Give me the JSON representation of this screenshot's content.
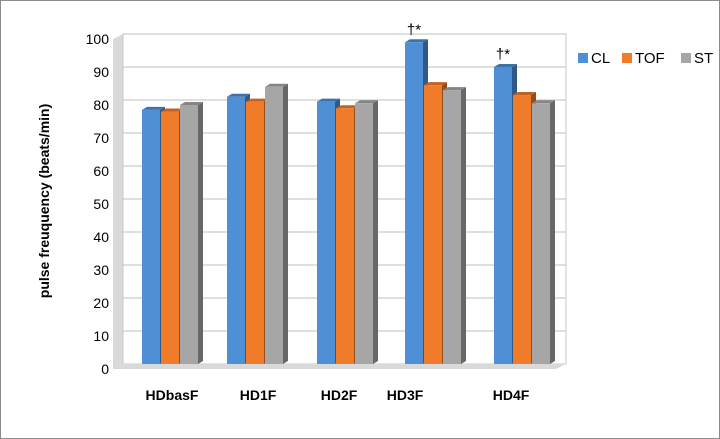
{
  "chart_data": {
    "type": "bar",
    "title": "",
    "xlabel": "",
    "ylabel": "pulse freuquency (beats/min)",
    "ylim": [
      0,
      100
    ],
    "yticks": [
      0,
      10,
      20,
      30,
      40,
      50,
      60,
      70,
      80,
      90,
      100
    ],
    "grid": true,
    "legend_position": "top-right",
    "categories": [
      "HDbasF",
      "HD1F",
      "HD2F",
      "HD3F",
      "HD4F"
    ],
    "series": [
      {
        "name": "CL",
        "color": "#4f8fd6",
        "values": [
          77,
          81,
          79.5,
          97.5,
          90
        ]
      },
      {
        "name": "TOF",
        "color": "#f07c2a",
        "values": [
          76.5,
          79.5,
          77.5,
          84.5,
          81.5
        ]
      },
      {
        "name": "ST",
        "color": "#a6a6a6",
        "values": [
          78.5,
          84,
          79,
          83,
          79
        ]
      }
    ],
    "annotations": [
      {
        "category": "HD3F",
        "series": "CL",
        "text": "†*"
      },
      {
        "category": "HD4F",
        "series": "CL",
        "text": "†*"
      }
    ]
  }
}
